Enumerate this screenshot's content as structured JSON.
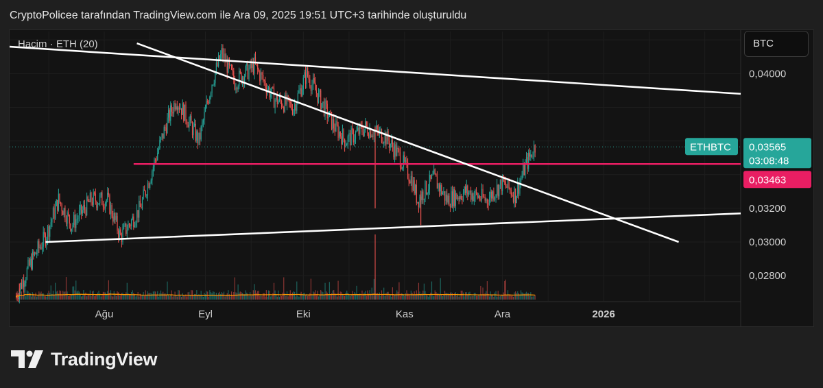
{
  "header": {
    "title": "CryptoPolicee tarafından TradingView.com ile Ara 09, 2025 19:51 UTC+3 tarihinde oluşturuldu"
  },
  "toolbar": {
    "symbol_button": "BTC"
  },
  "volume_legend": "Hacim · ETH (20)",
  "footer": {
    "logo_text": "TradingView"
  },
  "colors": {
    "up": "#26a69a",
    "down": "#ef5350",
    "support_line": "#e91e63",
    "trendline": "#ffffff",
    "volume_ma": "#ff9800",
    "price_badge": "#26a69a"
  },
  "chart_data": {
    "type": "candlestick",
    "symbol": "ETHBTC",
    "y_range": [
      0.0265,
      0.0425
    ],
    "y_ticks": [
      "0,04000",
      "0,03200",
      "0,03000",
      "0,02800"
    ],
    "x_ticks": [
      {
        "label": "Ağu",
        "date": "2025-08-01",
        "bold": false
      },
      {
        "label": "Eyl",
        "date": "2025-09-01",
        "bold": false
      },
      {
        "label": "Eki",
        "date": "2025-10-01",
        "bold": false
      },
      {
        "label": "Kas",
        "date": "2025-11-01",
        "bold": false
      },
      {
        "label": "Ara",
        "date": "2025-12-01",
        "bold": false
      },
      {
        "label": "2026",
        "date": "2026-01-01",
        "bold": true
      }
    ],
    "x_range": [
      "2025-07-03",
      "2026-02-12"
    ],
    "price_path": [
      {
        "date": "2025-07-05",
        "price": 0.0268
      },
      {
        "date": "2025-07-10",
        "price": 0.029
      },
      {
        "date": "2025-07-14",
        "price": 0.0303
      },
      {
        "date": "2025-07-18",
        "price": 0.0325
      },
      {
        "date": "2025-07-22",
        "price": 0.031
      },
      {
        "date": "2025-07-28",
        "price": 0.0325
      },
      {
        "date": "2025-08-02",
        "price": 0.0325
      },
      {
        "date": "2025-08-06",
        "price": 0.0303
      },
      {
        "date": "2025-08-12",
        "price": 0.032
      },
      {
        "date": "2025-08-16",
        "price": 0.0345
      },
      {
        "date": "2025-08-20",
        "price": 0.037
      },
      {
        "date": "2025-08-23",
        "price": 0.0385
      },
      {
        "date": "2025-08-26",
        "price": 0.0375
      },
      {
        "date": "2025-08-30",
        "price": 0.036
      },
      {
        "date": "2025-09-03",
        "price": 0.0395
      },
      {
        "date": "2025-09-06",
        "price": 0.0412
      },
      {
        "date": "2025-09-10",
        "price": 0.0395
      },
      {
        "date": "2025-09-16",
        "price": 0.0405
      },
      {
        "date": "2025-09-22",
        "price": 0.0385
      },
      {
        "date": "2025-09-28",
        "price": 0.038
      },
      {
        "date": "2025-10-02",
        "price": 0.04
      },
      {
        "date": "2025-10-06",
        "price": 0.0385
      },
      {
        "date": "2025-10-10",
        "price": 0.037
      },
      {
        "date": "2025-10-14",
        "price": 0.036
      },
      {
        "date": "2025-10-20",
        "price": 0.0368
      },
      {
        "date": "2025-10-26",
        "price": 0.0363
      },
      {
        "date": "2025-10-30",
        "price": 0.0352
      },
      {
        "date": "2025-11-03",
        "price": 0.0338
      },
      {
        "date": "2025-11-05",
        "price": 0.0325
      },
      {
        "date": "2025-11-10",
        "price": 0.0338
      },
      {
        "date": "2025-11-14",
        "price": 0.0325
      },
      {
        "date": "2025-11-20",
        "price": 0.033
      },
      {
        "date": "2025-11-26",
        "price": 0.0325
      },
      {
        "date": "2025-12-01",
        "price": 0.0335
      },
      {
        "date": "2025-12-05",
        "price": 0.0328
      },
      {
        "date": "2025-12-08",
        "price": 0.0345
      },
      {
        "date": "2025-12-11",
        "price": 0.0357
      }
    ],
    "spikes": [
      {
        "date": "2025-10-23",
        "price": 0.032
      },
      {
        "date": "2025-11-06",
        "price": 0.031
      },
      {
        "date": "2025-07-06",
        "price": 0.0268
      }
    ],
    "horizontal_line": 0.03463,
    "current_line": 0.03565,
    "labels": {
      "symbol": "ETHBTC",
      "last_price": "0,03565",
      "countdown": "03:08:48",
      "line_price": "0,03463"
    },
    "trendlines": [
      {
        "from": {
          "date": "2025-07-03",
          "price": 0.0416
        },
        "to": {
          "date": "2026-02-12",
          "price": 0.0388
        }
      },
      {
        "from": {
          "date": "2025-08-11",
          "price": 0.0418
        },
        "to": {
          "date": "2026-01-24",
          "price": 0.03
        }
      },
      {
        "from": {
          "date": "2025-07-14",
          "price": 0.03
        },
        "to": {
          "date": "2026-02-12",
          "price": 0.0317
        }
      }
    ],
    "volume_ma_period": 20,
    "grid": true
  }
}
